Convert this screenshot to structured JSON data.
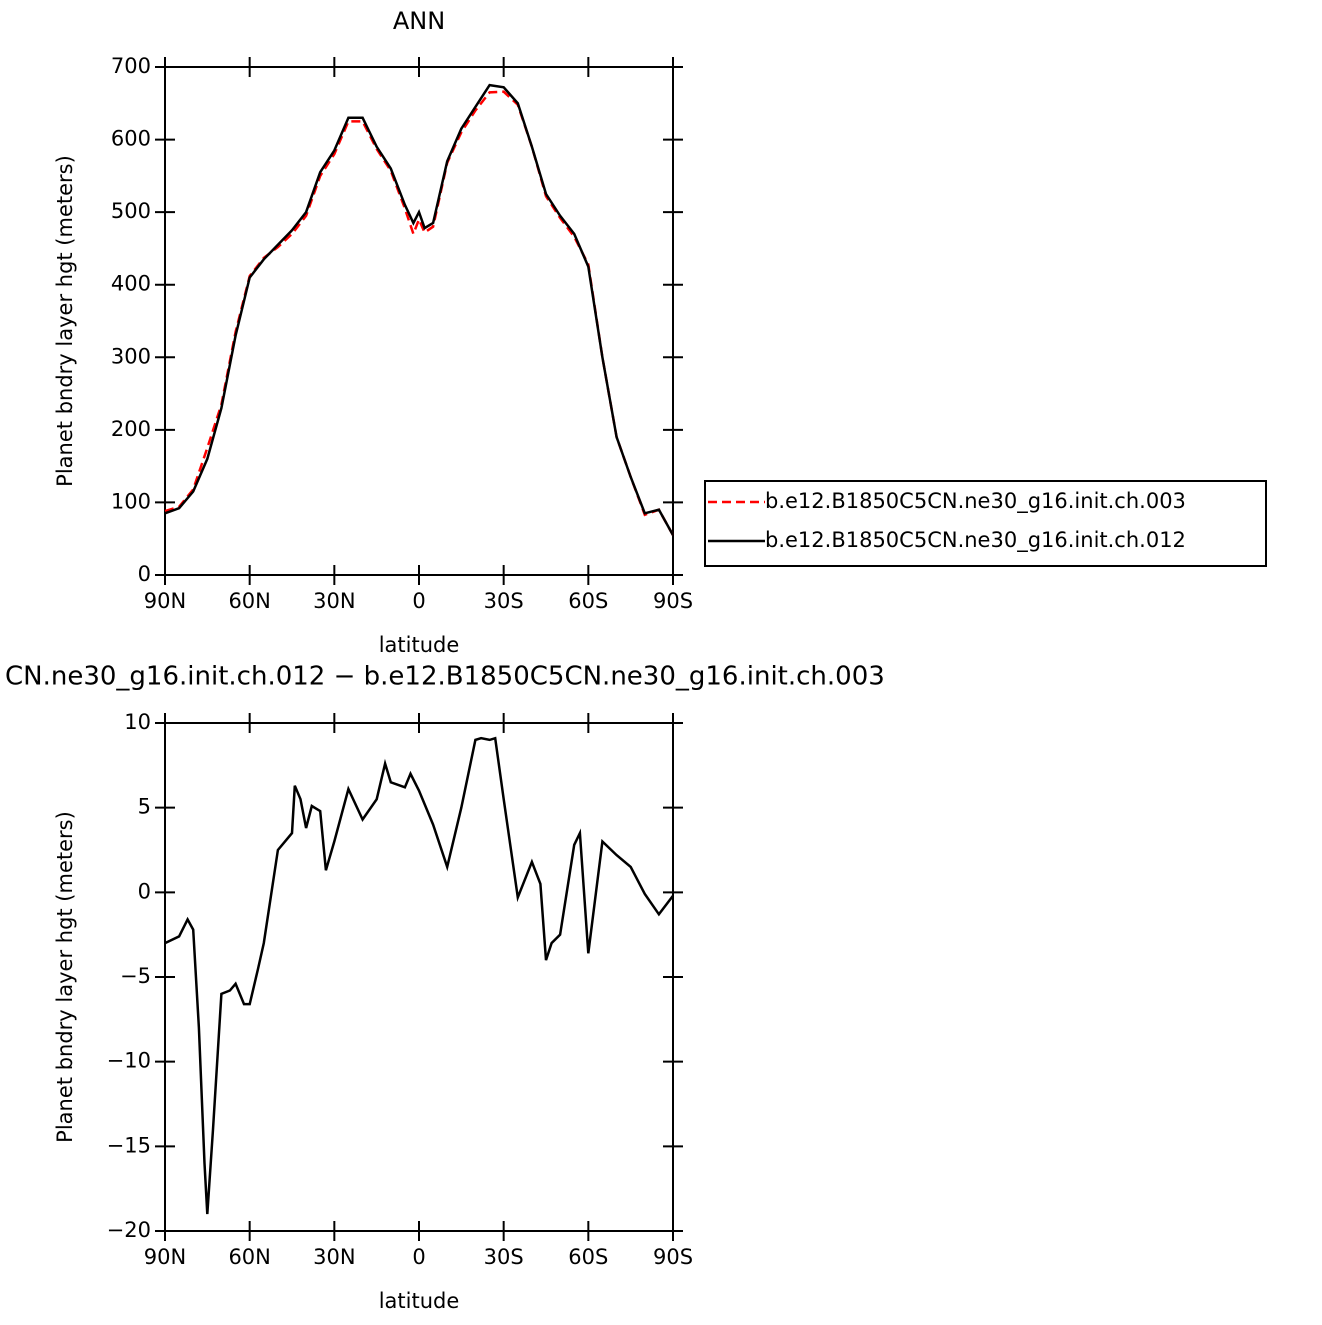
{
  "chart_data": [
    {
      "type": "line",
      "title": "ANN",
      "xlabel": "latitude",
      "ylabel": "Planet bndry layer hgt (meters)",
      "x": [
        90,
        85,
        80,
        75,
        70,
        65,
        60,
        55,
        50,
        45,
        40,
        35,
        30,
        25,
        20,
        15,
        10,
        5,
        2,
        0,
        -2,
        -5,
        -10,
        -15,
        -20,
        -25,
        -30,
        -35,
        -40,
        -45,
        -50,
        -55,
        -60,
        -65,
        -70,
        -75,
        -80,
        -85,
        -90
      ],
      "series": [
        {
          "name": "b.e12.B1850C5CN.ne30_g16.init.ch.003",
          "color": "#ff0000",
          "dash": "dashed",
          "values": [
            88,
            94,
            118,
            175,
            235,
            335,
            412,
            437,
            452,
            470,
            495,
            550,
            580,
            625,
            625,
            587,
            557,
            505,
            470,
            490,
            472,
            480,
            568,
            610,
            640,
            665,
            666,
            648,
            590,
            522,
            492,
            466,
            428,
            300,
            190,
            135,
            83,
            90,
            55
          ]
        },
        {
          "name": "b.e12.B1850C5CN.ne30_g16.init.ch.012",
          "color": "#000000",
          "dash": "solid",
          "values": [
            85,
            92,
            115,
            160,
            230,
            330,
            410,
            435,
            455,
            475,
            500,
            555,
            585,
            630,
            630,
            590,
            560,
            510,
            485,
            500,
            478,
            485,
            570,
            615,
            645,
            675,
            672,
            650,
            590,
            525,
            495,
            470,
            425,
            300,
            190,
            135,
            85,
            90,
            55
          ]
        }
      ],
      "xlim": [
        90,
        -90
      ],
      "xticks": [
        {
          "value": 90,
          "label": "90N"
        },
        {
          "value": 60,
          "label": "60N"
        },
        {
          "value": 30,
          "label": "30N"
        },
        0,
        {
          "value": -30,
          "label": "30S"
        },
        {
          "value": -60,
          "label": "60S"
        },
        {
          "value": -90,
          "label": "90S"
        }
      ],
      "ylim": [
        0,
        700
      ],
      "yticks": [
        0,
        100,
        200,
        300,
        400,
        500,
        600,
        700
      ],
      "legend": "right"
    },
    {
      "type": "line",
      "title": "CN.ne30_g16.init.ch.012 − b.e12.B1850C5CN.ne30_g16.init.ch.003",
      "xlabel": "latitude",
      "ylabel": "Planet bndry layer hgt (meters)",
      "x": [
        90,
        85,
        82,
        80,
        78,
        76,
        75,
        73,
        70,
        67,
        65,
        62,
        60,
        57,
        55,
        50,
        47,
        45,
        44,
        42,
        40,
        38,
        35,
        33,
        30,
        25,
        20,
        15,
        12,
        10,
        5,
        3,
        0,
        -5,
        -10,
        -15,
        -20,
        -22,
        -25,
        -27,
        -30,
        -35,
        -40,
        -43,
        -45,
        -47,
        -50,
        -55,
        -57,
        -60,
        -65,
        -70,
        -75,
        -80,
        -85,
        -90
      ],
      "series": [
        {
          "name": null,
          "color": "#000000",
          "dash": "solid",
          "values": [
            -3,
            -2.6,
            -1.6,
            -2.2,
            -8,
            -16,
            -19,
            -14,
            -6,
            -5.8,
            -5.4,
            -6.6,
            -6.6,
            -4.5,
            -3,
            2.5,
            3.1,
            3.5,
            6.3,
            5.5,
            3.8,
            5.1,
            4.8,
            1.3,
            3,
            6.1,
            4.3,
            5.5,
            7.6,
            6.5,
            6.2,
            7,
            6,
            4,
            1.5,
            5,
            9,
            9.1,
            9,
            9.1,
            5.5,
            -0.3,
            1.8,
            0.5,
            -4,
            -3,
            -2.5,
            2.8,
            3.5,
            -3.6,
            3,
            2.2,
            1.5,
            -0.1,
            -1.3,
            -0.2
          ]
        }
      ],
      "xlim": [
        90,
        -90
      ],
      "xticks": [
        {
          "value": 90,
          "label": "90N"
        },
        {
          "value": 60,
          "label": "60N"
        },
        {
          "value": 30,
          "label": "30N"
        },
        0,
        {
          "value": -30,
          "label": "30S"
        },
        {
          "value": -60,
          "label": "60S"
        },
        {
          "value": -90,
          "label": "90S"
        }
      ],
      "ylim": [
        -20,
        10
      ],
      "yticks": [
        {
          "value": -20,
          "label": "−20"
        },
        {
          "value": -15,
          "label": "−15"
        },
        {
          "value": -10,
          "label": "−10"
        },
        {
          "value": -5,
          "label": "−5"
        },
        0,
        5,
        10
      ]
    }
  ]
}
